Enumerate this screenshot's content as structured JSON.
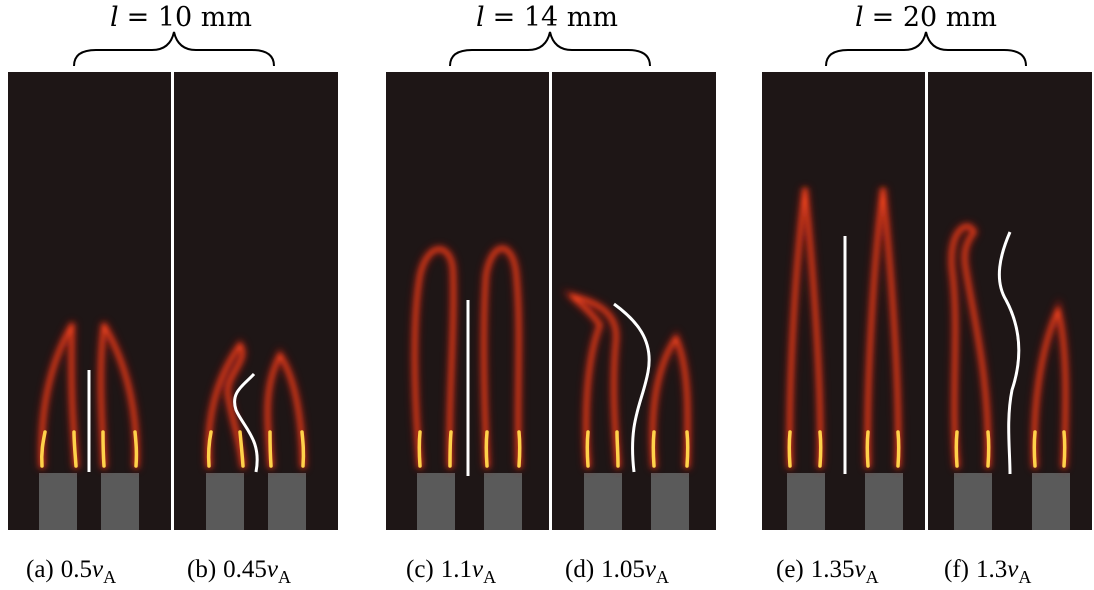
{
  "groups": [
    {
      "l_symbol": "l",
      "l_eq": "= 10 mm"
    },
    {
      "l_symbol": "l",
      "l_eq": "= 14 mm"
    },
    {
      "l_symbol": "l",
      "l_eq": "= 20 mm"
    }
  ],
  "panels": [
    {
      "label": "(a)",
      "value": "0.5",
      "symbol": "ν",
      "subscript": "A"
    },
    {
      "label": "(b)",
      "value": "0.45",
      "symbol": "ν",
      "subscript": "A"
    },
    {
      "label": "(c)",
      "value": "1.1",
      "symbol": "ν",
      "subscript": "A"
    },
    {
      "label": "(d)",
      "value": "1.05",
      "symbol": "ν",
      "subscript": "A"
    },
    {
      "label": "(e)",
      "value": "1.35",
      "symbol": "ν",
      "subscript": "A"
    },
    {
      "label": "(f)",
      "value": "1.3",
      "symbol": "ν",
      "subscript": "A"
    }
  ],
  "colors": {
    "panel_bg": "#1e1616",
    "burner": "#5a5a5a",
    "flame_outer": "#c81e14",
    "flame_mid": "#ff4a1c",
    "flame_base": "#ffd24a",
    "centerline": "#ffffff"
  }
}
